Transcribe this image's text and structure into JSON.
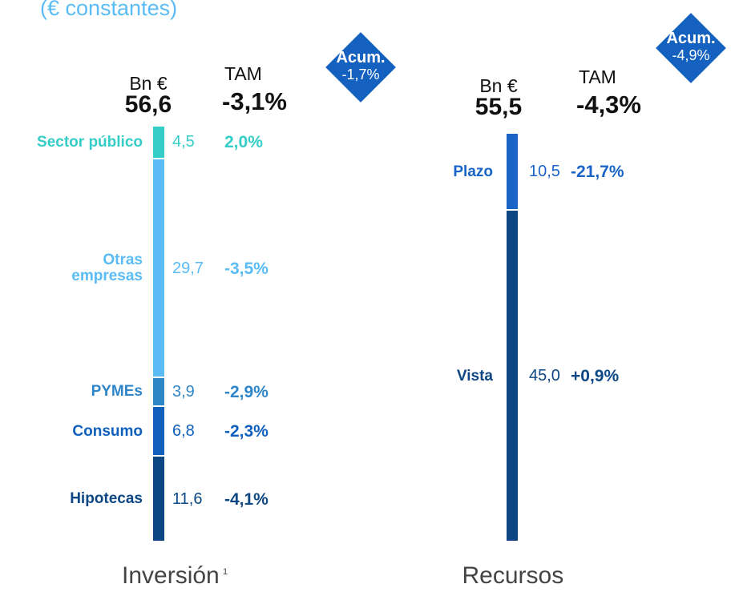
{
  "subtitle": "(€ constantes)",
  "chart_data": [
    {
      "type": "stacked-bar",
      "title": "Inversión",
      "title_note": "1",
      "unit": "Bn €",
      "total": "56,6",
      "change_title": "TAM",
      "change_total": "-3,1%",
      "badge": {
        "title": "Acum.",
        "value": "-1,7%"
      },
      "categories": [
        "Sector público",
        "Otras\nempresas",
        "PYMEs",
        "Consumo",
        "Hipotecas"
      ],
      "values": [
        4.5,
        29.7,
        3.9,
        6.8,
        11.6
      ],
      "value_labels": [
        "4,5",
        "29,7",
        "3,9",
        "6,8",
        "11,6"
      ],
      "changes": [
        "2,0%",
        "-3,5%",
        "-2,9%",
        "-2,3%",
        "-4,1%"
      ],
      "colors": [
        "#35cdc8",
        "#5bbcf5",
        "#2e86c8",
        "#0f5fbc",
        "#0c4784"
      ]
    },
    {
      "type": "stacked-bar",
      "title": "Recursos",
      "unit": "Bn €",
      "total": "55,5",
      "change_title": "TAM",
      "change_total": "-4,3%",
      "badge": {
        "title": "Acum.",
        "value": "-4,9%"
      },
      "categories": [
        "Plazo",
        "Vista"
      ],
      "values": [
        10.5,
        45.0
      ],
      "value_labels": [
        "10,5",
        "45,0"
      ],
      "changes": [
        "-21,7%",
        "+0,9%"
      ],
      "colors": [
        "#1a64c8",
        "#0c4784"
      ]
    }
  ]
}
